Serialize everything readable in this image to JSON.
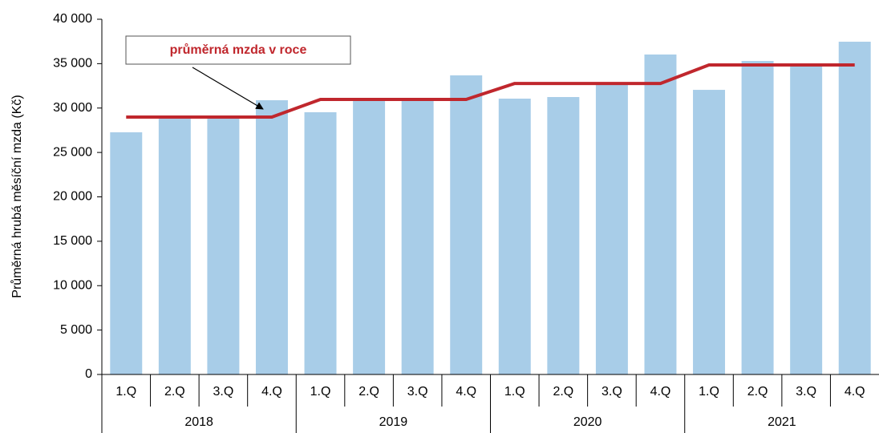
{
  "chart_data": {
    "type": "bar",
    "y_label": "Průměrná hrubá měsíční mzda (Kč)",
    "categories": [
      "1.Q",
      "2.Q",
      "3.Q",
      "4.Q",
      "1.Q",
      "2.Q",
      "3.Q",
      "4.Q",
      "1.Q",
      "2.Q",
      "3.Q",
      "4.Q",
      "1.Q",
      "2.Q",
      "3.Q",
      "4.Q"
    ],
    "years": [
      "2018",
      "2019",
      "2020",
      "2021"
    ],
    "series": [
      {
        "name": "Průměrná hrubá měsíční mzda",
        "type": "bar",
        "color": "#a8cde8",
        "values": [
          27270,
          28800,
          28900,
          30880,
          29530,
          30900,
          31000,
          33680,
          31060,
          31240,
          32700,
          36030,
          32050,
          35300,
          34900,
          37470
        ]
      },
      {
        "name": "průměrná mzda v roce",
        "type": "line",
        "color": "#c0272d",
        "values": [
          28980,
          28980,
          28980,
          28980,
          30970,
          30970,
          30970,
          30970,
          32770,
          32770,
          32770,
          32770,
          34850,
          34850,
          34850,
          34850
        ]
      }
    ],
    "ylim": [
      0,
      40000
    ],
    "yticks": [
      0,
      {
        "value": 5000,
        "label": "5 000"
      },
      {
        "value": 10000,
        "label": "10 000"
      },
      {
        "value": 15000,
        "label": "15 000"
      },
      {
        "value": 20000,
        "label": "20 000"
      },
      {
        "value": 25000,
        "label": "25 000"
      },
      {
        "value": 30000,
        "label": "30 000"
      },
      {
        "value": 35000,
        "label": "35 000"
      },
      {
        "value": 40000,
        "label": "40 000"
      }
    ]
  }
}
